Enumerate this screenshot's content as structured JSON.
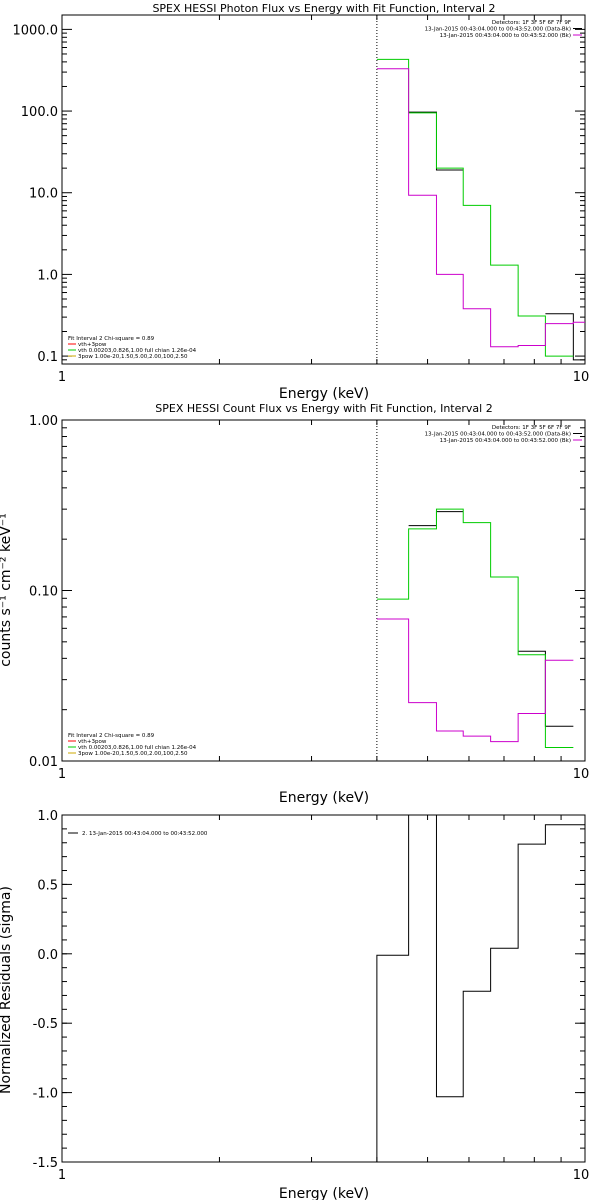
{
  "chart_data": [
    {
      "type": "line",
      "title": "SPEX HESSI Photon Flux vs Energy with Fit Function, Interval 2",
      "xlabel": "Energy (keV)",
      "ylabel": "",
      "xscale": "log",
      "yscale": "log",
      "xlim": [
        1,
        10
      ],
      "ylim": [
        0.08,
        1500
      ],
      "x_ticks": [
        "1",
        "10"
      ],
      "y_ticks": [
        {
          "v": 1000,
          "label": "1000.0"
        },
        {
          "v": 100,
          "label": "100.0"
        },
        {
          "v": 10,
          "label": "10.0"
        },
        {
          "v": 1,
          "label": "1.0"
        },
        {
          "v": 0.1,
          "label": "0.1"
        }
      ],
      "vline_x": 4.0,
      "header_lines": [
        {
          "text": "Detectors: 1F 3F 5F 6F 7F 9F",
          "color": null
        },
        {
          "text": "13-Jan-2015 00:43:04.000 to 00:43:52.000 (Data-Bk)",
          "color": "#000000"
        },
        {
          "text": "13-Jan-2015 00:43:04.000 to 00:43:52.000 (Bk)",
          "color": "#cc00cc"
        }
      ],
      "legend_lines": [
        {
          "text": "Fit Interval  2    Chi-square = 0.89",
          "color": null
        },
        {
          "text": "vth+3pow",
          "color": "#ff0000"
        },
        {
          "text": "vth 0.00203,0.826,1.00   full chian 1.26e-04",
          "color": "#00cc00"
        },
        {
          "text": "3pow 1.00e-20,1.50,5.00,2.00,100,2.50",
          "color": "#ccaa00"
        }
      ],
      "series": [
        {
          "color": "#000000",
          "edges": [
            4.0,
            4.6,
            5.2,
            5.85,
            6.6,
            7.45,
            8.4,
            9.5,
            10.0
          ],
          "values": [
            null,
            97,
            19,
            null,
            null,
            null,
            0.33,
            0.09
          ]
        },
        {
          "color": "#00cc00",
          "edges": [
            4.0,
            4.6,
            5.2,
            5.85,
            6.6,
            7.45,
            8.4,
            9.5,
            10.0
          ],
          "values": [
            430,
            95,
            20,
            7.0,
            1.3,
            0.31,
            0.1,
            null
          ]
        },
        {
          "color": "#cc00cc",
          "edges": [
            4.0,
            4.6,
            5.2,
            5.85,
            6.6,
            7.45,
            8.4,
            9.5,
            10.0
          ],
          "values": [
            330,
            9.3,
            1.0,
            0.38,
            0.13,
            0.135,
            0.25,
            0.26
          ]
        }
      ]
    },
    {
      "type": "line",
      "title": "SPEX HESSI Count Flux vs Energy with Fit Function, Interval 2",
      "xlabel": "Energy (keV)",
      "ylabel": "counts s⁻¹ cm⁻² keV⁻¹",
      "xscale": "log",
      "yscale": "log",
      "xlim": [
        1,
        10
      ],
      "ylim": [
        0.01,
        1.0
      ],
      "x_ticks": [
        "1",
        "10"
      ],
      "y_ticks": [
        {
          "v": 1.0,
          "label": "1.00"
        },
        {
          "v": 0.1,
          "label": "0.10"
        },
        {
          "v": 0.01,
          "label": "0.01"
        }
      ],
      "vline_x": 4.0,
      "header_lines": [
        {
          "text": "Detectors: 1F 3F 5F 6F 7F 9F",
          "color": null
        },
        {
          "text": "13-Jan-2015 00:43:04.000 to 00:43:52.000 (Data-Bk)",
          "color": "#000000"
        },
        {
          "text": "13-Jan-2015 00:43:04.000 to 00:43:52.000 (Bk)",
          "color": "#cc00cc"
        }
      ],
      "legend_lines": [
        {
          "text": "Fit Interval  2    Chi-square = 0.89",
          "color": null
        },
        {
          "text": "vth+3pow",
          "color": "#ff0000"
        },
        {
          "text": "vth 0.00203,0.826,1.00   full chian 1.26e-04",
          "color": "#00cc00"
        },
        {
          "text": "3pow 1.00e-20,1.50,5.00,2.00,100,2.50",
          "color": "#ccaa00"
        }
      ],
      "series": [
        {
          "color": "#000000",
          "edges": [
            4.0,
            4.6,
            5.2,
            5.85,
            6.6,
            7.45,
            8.4,
            9.5,
            10.0
          ],
          "values": [
            null,
            0.24,
            0.29,
            null,
            null,
            0.044,
            0.016,
            null
          ]
        },
        {
          "color": "#00cc00",
          "edges": [
            4.0,
            4.6,
            5.2,
            5.85,
            6.6,
            7.45,
            8.4,
            9.5,
            10.0
          ],
          "values": [
            0.089,
            0.23,
            0.3,
            0.25,
            0.12,
            0.042,
            0.012,
            null
          ]
        },
        {
          "color": "#cc00cc",
          "edges": [
            4.0,
            4.6,
            5.2,
            5.85,
            6.6,
            7.45,
            8.4,
            9.5,
            10.0
          ],
          "values": [
            0.068,
            0.022,
            0.015,
            0.014,
            0.013,
            0.019,
            0.039,
            null
          ]
        }
      ]
    },
    {
      "type": "line",
      "title": "",
      "xlabel": "Energy (keV)",
      "ylabel": "Normalized Residuals (sigma)",
      "xscale": "log",
      "yscale": "linear",
      "xlim": [
        1,
        10
      ],
      "ylim": [
        -1.5,
        1.0
      ],
      "x_ticks": [
        "1",
        "10"
      ],
      "y_ticks": [
        {
          "v": 1.0,
          "label": "1.0"
        },
        {
          "v": 0.5,
          "label": "0.5"
        },
        {
          "v": 0.0,
          "label": "0.0"
        },
        {
          "v": -0.5,
          "label": "-0.5"
        },
        {
          "v": -1.0,
          "label": "-1.0"
        },
        {
          "v": -1.5,
          "label": "-1.5"
        }
      ],
      "legend_lines": [
        {
          "text": "2. 13-Jan-2015 00:43:04.000 to 00:43:52.000",
          "color": null
        }
      ],
      "series": [
        {
          "color": "#000000",
          "edges": [
            4.0,
            4.6,
            5.2,
            5.85,
            6.6,
            7.45,
            8.4,
            9.5,
            10.0
          ],
          "values": [
            -0.01,
            1.0,
            -1.03,
            -0.27,
            0.04,
            0.79,
            0.93,
            0.93
          ],
          "start_from": -1.5
        }
      ]
    }
  ]
}
